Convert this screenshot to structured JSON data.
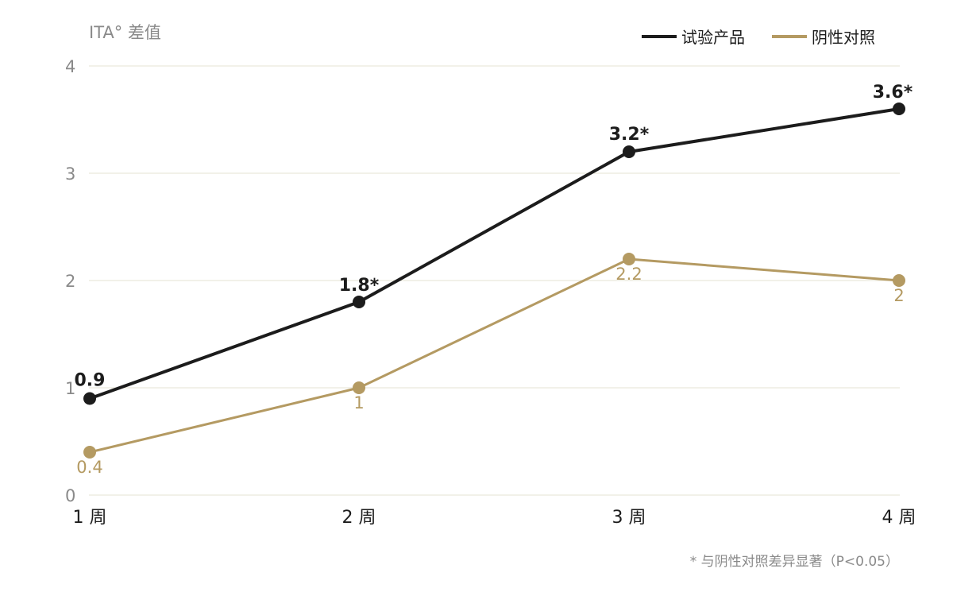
{
  "chart_data": {
    "type": "line",
    "ylabel": "ITA° 差值",
    "categories": [
      "1 周",
      "2 周",
      "3 周",
      "4 周"
    ],
    "ylim": [
      0,
      4
    ],
    "yticks": [
      "0",
      "1",
      "2",
      "3",
      "4"
    ],
    "grid": true,
    "legend_position": "top-right",
    "series": [
      {
        "name": "试验产品",
        "color": "#1c1c1c",
        "values": [
          0.9,
          1.8,
          3.2,
          3.6
        ],
        "labels": [
          "0.9",
          "1.8*",
          "3.2*",
          "3.6*"
        ]
      },
      {
        "name": "阴性对照",
        "color": "#b49a62",
        "values": [
          0.4,
          1,
          2.2,
          2
        ],
        "labels": [
          "0.4",
          "1",
          "2.2",
          "2"
        ]
      }
    ],
    "footnote": "* 与阴性对照差异显著（P<0.05）"
  },
  "colors": {
    "grid": "#e6e3d3",
    "axis_text": "#8a8a8a"
  }
}
